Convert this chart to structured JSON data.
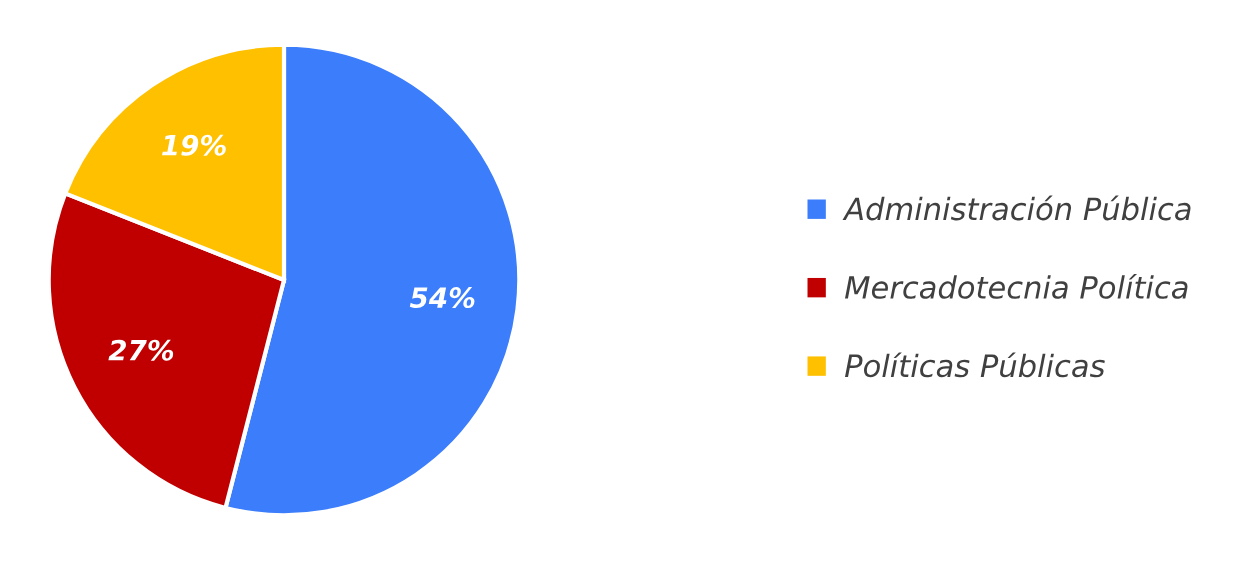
{
  "chart_data": {
    "type": "pie",
    "categories": [
      "Administración Pública",
      "Mercadotecnia Política",
      "Políticas Públicas"
    ],
    "values": [
      54,
      27,
      19
    ],
    "colors": [
      "#3b7dfb",
      "#c00000",
      "#ffc000"
    ],
    "value_labels": [
      "54%",
      "27%",
      "19%"
    ],
    "legend": "right"
  }
}
